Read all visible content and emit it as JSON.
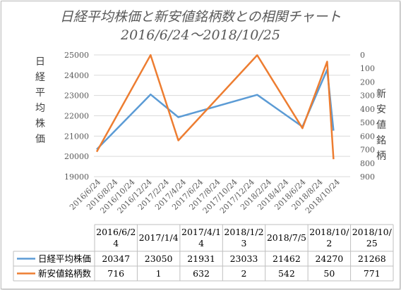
{
  "chart_data": {
    "type": "line",
    "title": "日経平均株価と新安値銘柄数との相関チャート",
    "subtitle": "2016/6/24～2018/10/25",
    "ylabel_left": "日経平均株価",
    "ylabel_right": "新安値銘柄",
    "left_axis": {
      "min": 19000,
      "max": 25000,
      "step": 1000,
      "ticks": [
        "19000",
        "20000",
        "21000",
        "22000",
        "23000",
        "24000",
        "25000"
      ]
    },
    "right_axis": {
      "min": 0,
      "max": 900,
      "step": 100,
      "reversed": true,
      "ticks": [
        "0",
        "100",
        "200",
        "300",
        "400",
        "500",
        "600",
        "700",
        "800",
        "900"
      ]
    },
    "x_ticks": [
      "2016/6/24",
      "2016/8/24",
      "2016/10/24",
      "2016/12/24",
      "2017/2/24",
      "2017/4/24",
      "2017/6/24",
      "2017/8/24",
      "2017/10/24",
      "2017/12/24",
      "2018/2/24",
      "2018/4/24",
      "2018/6/24",
      "2018/8/24",
      "2018/10/24"
    ],
    "categories": [
      "2016/6/24",
      "2017/1/4",
      "2017/4/14",
      "2018/1/23",
      "2018/7/5",
      "2018/10/2",
      "2018/10/25"
    ],
    "table_headers": [
      "2016/6/2\n4",
      "2017/1/4",
      "2017/4/1\n4",
      "2018/1/2\n3",
      "2018/7/5",
      "2018/10/\n2",
      "2018/10/\n25"
    ],
    "series": [
      {
        "name": "日経平均株価",
        "axis": "left",
        "color": "#5b9bd5",
        "values": [
          20347,
          23050,
          21931,
          23033,
          21462,
          24270,
          21268
        ],
        "labels": [
          "20347",
          "23050",
          "21931",
          "23033",
          "21462",
          "24270",
          "21268"
        ]
      },
      {
        "name": "新安値銘柄数",
        "axis": "right",
        "color": "#ed7d31",
        "values": [
          716,
          1,
          632,
          2,
          542,
          50,
          771
        ],
        "labels": [
          "716",
          "1",
          "632",
          "2",
          "542",
          "50",
          "771"
        ]
      }
    ]
  }
}
